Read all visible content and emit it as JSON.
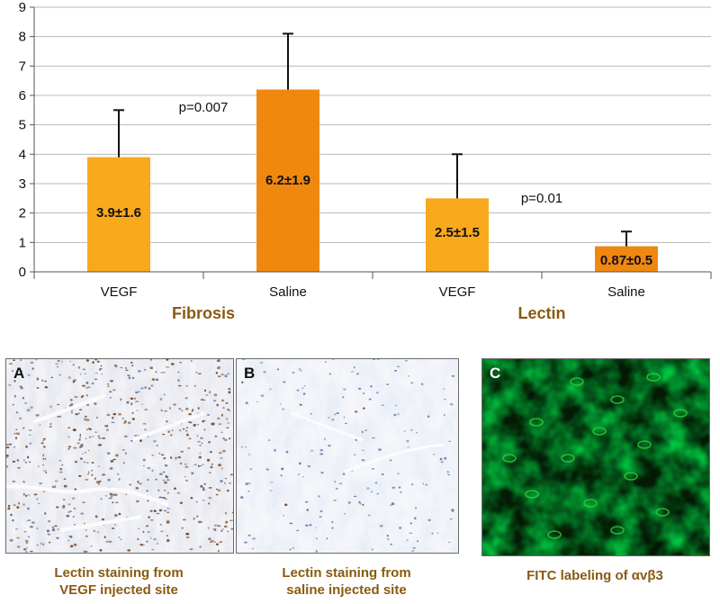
{
  "chart_data": {
    "type": "bar",
    "groups": [
      {
        "label": "Fibrosis",
        "categories": [
          "VEGF",
          "Saline"
        ]
      },
      {
        "label": "Lectin",
        "categories": [
          "VEGF",
          "Saline"
        ]
      }
    ],
    "categories": [
      "VEGF",
      "Saline",
      "VEGF",
      "Saline"
    ],
    "values": [
      3.9,
      6.2,
      2.5,
      0.87
    ],
    "errors": [
      1.6,
      1.9,
      1.5,
      0.5
    ],
    "data_labels": [
      "3.9±1.6",
      "6.2±1.9",
      "2.5±1.5",
      "0.87±0.5"
    ],
    "bar_colors": [
      "#f8a91c",
      "#f0880f",
      "#f8a91c",
      "#f0880f"
    ],
    "annotations": [
      "p=0.007",
      "p=0.01"
    ],
    "ylim": [
      0,
      9
    ],
    "yticks": [
      0,
      1,
      2,
      3,
      4,
      5,
      6,
      7,
      8,
      9
    ],
    "grid": true,
    "title": "",
    "xlabel": "",
    "ylabel": ""
  },
  "panels": [
    {
      "letter": "A",
      "caption_lines": [
        "Lectin staining from",
        "VEGF injected site"
      ]
    },
    {
      "letter": "B",
      "caption_lines": [
        "Lectin staining from",
        "saline injected site"
      ]
    },
    {
      "letter": "C",
      "caption_lines": [
        "FITC labeling of αvβ3"
      ]
    }
  ],
  "colors": {
    "group_label": "#8a5a10",
    "caption": "#8a5a10",
    "fitc_green": "#2a8a2a"
  }
}
